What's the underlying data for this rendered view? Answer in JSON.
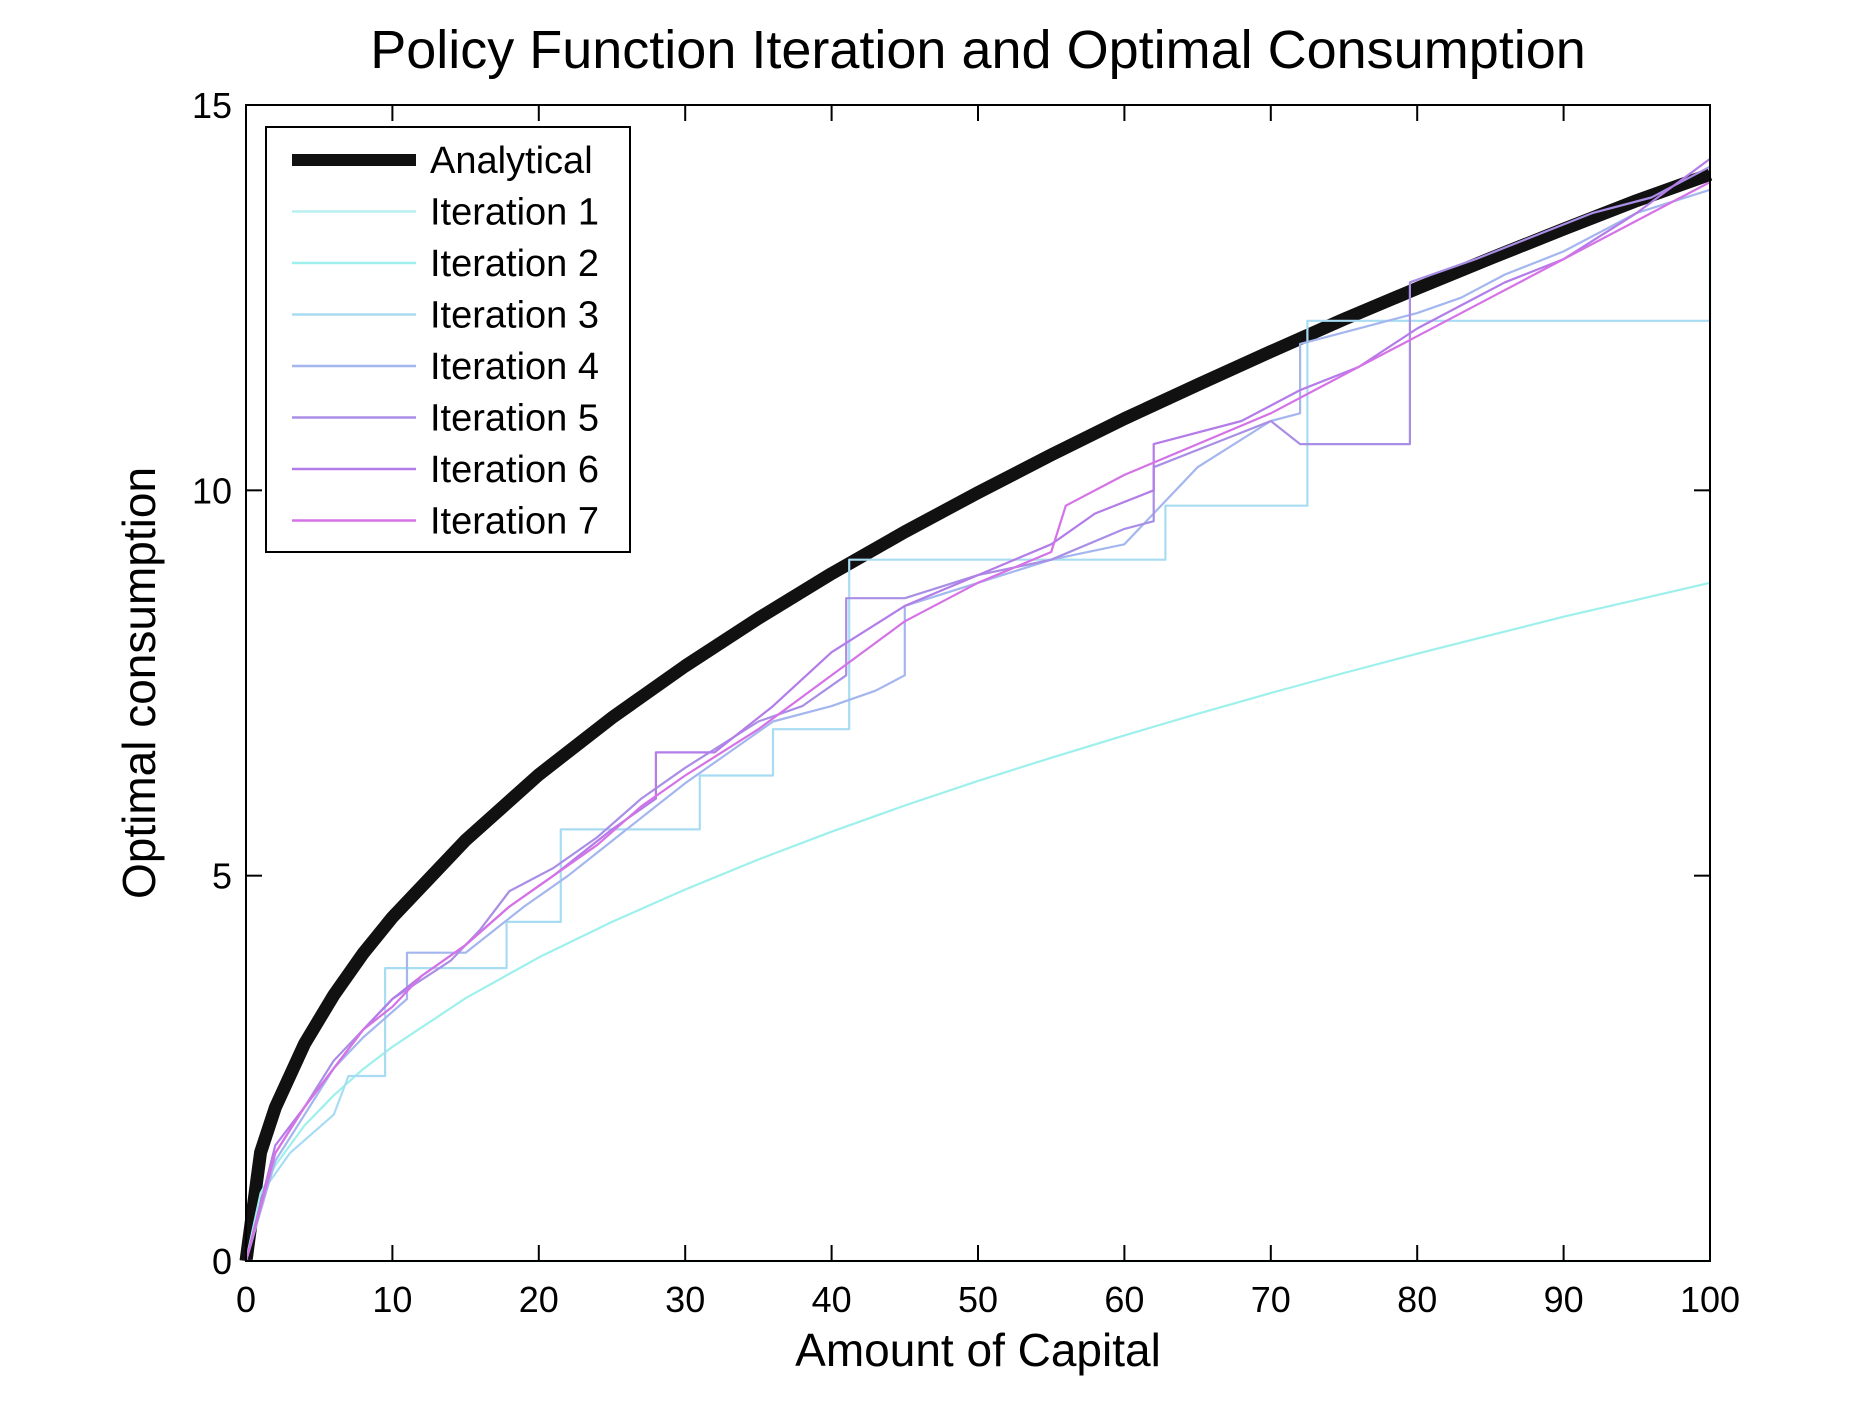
{
  "chart_data": {
    "type": "line",
    "title": "Policy Function Iteration and Optimal Consumption",
    "xlabel": "Amount of Capital",
    "ylabel": "Optimal consumption",
    "xlim": [
      0,
      100
    ],
    "ylim": [
      0,
      15
    ],
    "x_ticks": [
      "0",
      "10",
      "20",
      "30",
      "40",
      "50",
      "60",
      "70",
      "80",
      "90",
      "100"
    ],
    "y_ticks": [
      "0",
      "5",
      "10",
      "15"
    ],
    "grid": false,
    "legend_position": "top-left",
    "series": [
      {
        "name": "Analytical",
        "color": "#111111",
        "style": "thick",
        "points": [
          [
            0,
            0
          ],
          [
            1,
            1.41
          ],
          [
            2,
            1.99
          ],
          [
            4,
            2.82
          ],
          [
            6,
            3.45
          ],
          [
            8,
            3.99
          ],
          [
            10,
            4.46
          ],
          [
            15,
            5.46
          ],
          [
            20,
            6.31
          ],
          [
            25,
            7.05
          ],
          [
            30,
            7.72
          ],
          [
            35,
            8.34
          ],
          [
            40,
            8.92
          ],
          [
            45,
            9.46
          ],
          [
            50,
            9.97
          ],
          [
            55,
            10.46
          ],
          [
            60,
            10.93
          ],
          [
            65,
            11.37
          ],
          [
            70,
            11.8
          ],
          [
            75,
            12.22
          ],
          [
            80,
            12.62
          ],
          [
            85,
            13.01
          ],
          [
            90,
            13.39
          ],
          [
            95,
            13.76
          ],
          [
            100,
            14.1
          ]
        ]
      },
      {
        "name": "Iteration 1",
        "color": "#b9f0f0",
        "style": "thin",
        "points": [
          [
            0,
            0
          ],
          [
            100,
            0
          ]
        ]
      },
      {
        "name": "Iteration 2",
        "color": "#9ef0ec",
        "style": "thin",
        "points": [
          [
            0,
            0
          ],
          [
            1,
            0.88
          ],
          [
            2,
            1.24
          ],
          [
            4,
            1.76
          ],
          [
            6,
            2.15
          ],
          [
            8,
            2.49
          ],
          [
            10,
            2.78
          ],
          [
            15,
            3.41
          ],
          [
            20,
            3.94
          ],
          [
            25,
            4.4
          ],
          [
            30,
            4.82
          ],
          [
            35,
            5.21
          ],
          [
            40,
            5.57
          ],
          [
            45,
            5.91
          ],
          [
            50,
            6.23
          ],
          [
            55,
            6.53
          ],
          [
            60,
            6.82
          ],
          [
            65,
            7.1
          ],
          [
            70,
            7.37
          ],
          [
            75,
            7.63
          ],
          [
            80,
            7.88
          ],
          [
            85,
            8.12
          ],
          [
            90,
            8.36
          ],
          [
            95,
            8.58
          ],
          [
            100,
            8.8
          ]
        ]
      },
      {
        "name": "Iteration 3",
        "color": "#a8dcf2",
        "style": "thin",
        "points": [
          [
            0,
            0
          ],
          [
            1.5,
            1.0
          ],
          [
            3,
            1.4
          ],
          [
            6,
            1.9
          ],
          [
            7,
            2.4
          ],
          [
            9.5,
            2.4
          ],
          [
            9.5,
            3.8
          ],
          [
            17.8,
            3.8
          ],
          [
            17.8,
            4.4
          ],
          [
            21.5,
            4.4
          ],
          [
            21.5,
            5.6
          ],
          [
            31,
            5.6
          ],
          [
            31,
            6.3
          ],
          [
            36,
            6.3
          ],
          [
            36,
            6.9
          ],
          [
            41.2,
            6.9
          ],
          [
            41.2,
            9.1
          ],
          [
            62.8,
            9.1
          ],
          [
            62.8,
            9.8
          ],
          [
            72.5,
            9.8
          ],
          [
            72.5,
            12.2
          ],
          [
            100,
            12.2
          ],
          [
            100,
            13.1
          ]
        ]
      },
      {
        "name": "Iteration 4",
        "color": "#a4b6ee",
        "style": "thin",
        "points": [
          [
            0,
            0
          ],
          [
            2,
            1.3
          ],
          [
            4,
            1.9
          ],
          [
            6,
            2.5
          ],
          [
            8,
            2.9
          ],
          [
            11,
            3.4
          ],
          [
            11,
            4.0
          ],
          [
            15,
            4.0
          ],
          [
            17,
            4.3
          ],
          [
            19,
            4.6
          ],
          [
            22,
            5.0
          ],
          [
            24,
            5.3
          ],
          [
            26,
            5.6
          ],
          [
            28,
            5.9
          ],
          [
            30,
            6.2
          ],
          [
            33,
            6.6
          ],
          [
            36,
            7.0
          ],
          [
            40,
            7.2
          ],
          [
            43,
            7.4
          ],
          [
            45,
            7.6
          ],
          [
            45,
            8.5
          ],
          [
            50,
            8.8
          ],
          [
            55,
            9.1
          ],
          [
            60,
            9.3
          ],
          [
            65,
            10.3
          ],
          [
            70,
            10.9
          ],
          [
            72,
            11.0
          ],
          [
            72,
            11.9
          ],
          [
            80,
            12.3
          ],
          [
            83,
            12.5
          ],
          [
            86,
            12.8
          ],
          [
            90,
            13.1
          ],
          [
            95,
            13.6
          ],
          [
            100,
            13.9
          ]
        ]
      },
      {
        "name": "Iteration 5",
        "color": "#a98ee6",
        "style": "thin",
        "points": [
          [
            0,
            0
          ],
          [
            2,
            1.4
          ],
          [
            4,
            2.0
          ],
          [
            6,
            2.6
          ],
          [
            8,
            3.0
          ],
          [
            10,
            3.4
          ],
          [
            14,
            3.9
          ],
          [
            16,
            4.3
          ],
          [
            18,
            4.8
          ],
          [
            21,
            5.1
          ],
          [
            24,
            5.5
          ],
          [
            27,
            6.0
          ],
          [
            30,
            6.4
          ],
          [
            35,
            7.0
          ],
          [
            38,
            7.2
          ],
          [
            41,
            7.6
          ],
          [
            41,
            8.6
          ],
          [
            45,
            8.6
          ],
          [
            50,
            8.9
          ],
          [
            55,
            9.1
          ],
          [
            60,
            9.5
          ],
          [
            62,
            9.6
          ],
          [
            62,
            10.3
          ],
          [
            66,
            10.6
          ],
          [
            70,
            10.9
          ],
          [
            72,
            10.6
          ],
          [
            79.5,
            10.6
          ],
          [
            79.5,
            12.7
          ],
          [
            84,
            13.0
          ],
          [
            88,
            13.3
          ],
          [
            92,
            13.6
          ],
          [
            96,
            13.8
          ],
          [
            100,
            14.2
          ]
        ]
      },
      {
        "name": "Iteration 6",
        "color": "#b37ce8",
        "style": "thin",
        "points": [
          [
            0,
            0
          ],
          [
            2,
            1.5
          ],
          [
            4,
            2.0
          ],
          [
            6,
            2.5
          ],
          [
            8,
            3.0
          ],
          [
            10,
            3.4
          ],
          [
            12,
            3.7
          ],
          [
            15,
            4.1
          ],
          [
            18,
            4.6
          ],
          [
            21,
            5.0
          ],
          [
            25,
            5.6
          ],
          [
            28,
            6.0
          ],
          [
            28,
            6.6
          ],
          [
            32,
            6.6
          ],
          [
            36,
            7.2
          ],
          [
            40,
            7.9
          ],
          [
            45,
            8.5
          ],
          [
            50,
            8.9
          ],
          [
            55,
            9.3
          ],
          [
            58,
            9.7
          ],
          [
            62,
            10.0
          ],
          [
            62,
            10.6
          ],
          [
            68,
            10.9
          ],
          [
            72,
            11.3
          ],
          [
            76,
            11.6
          ],
          [
            80,
            12.1
          ],
          [
            83,
            12.4
          ],
          [
            86,
            12.7
          ],
          [
            90,
            13.0
          ],
          [
            95,
            13.6
          ],
          [
            100,
            14.3
          ]
        ]
      },
      {
        "name": "Iteration 7",
        "color": "#d572e6",
        "style": "thin",
        "points": [
          [
            0,
            0
          ],
          [
            2,
            1.4
          ],
          [
            4,
            2.0
          ],
          [
            6,
            2.5
          ],
          [
            8,
            3.0
          ],
          [
            10,
            3.3
          ],
          [
            12,
            3.7
          ],
          [
            15,
            4.1
          ],
          [
            18,
            4.6
          ],
          [
            21,
            5.0
          ],
          [
            24,
            5.4
          ],
          [
            27,
            5.9
          ],
          [
            30,
            6.3
          ],
          [
            35,
            6.9
          ],
          [
            40,
            7.6
          ],
          [
            45,
            8.3
          ],
          [
            50,
            8.8
          ],
          [
            55,
            9.2
          ],
          [
            56,
            9.8
          ],
          [
            60,
            10.2
          ],
          [
            65,
            10.6
          ],
          [
            70,
            11.0
          ],
          [
            75,
            11.5
          ],
          [
            80,
            12.0
          ],
          [
            85,
            12.5
          ],
          [
            90,
            13.0
          ],
          [
            95,
            13.5
          ],
          [
            100,
            14.0
          ]
        ]
      }
    ]
  }
}
